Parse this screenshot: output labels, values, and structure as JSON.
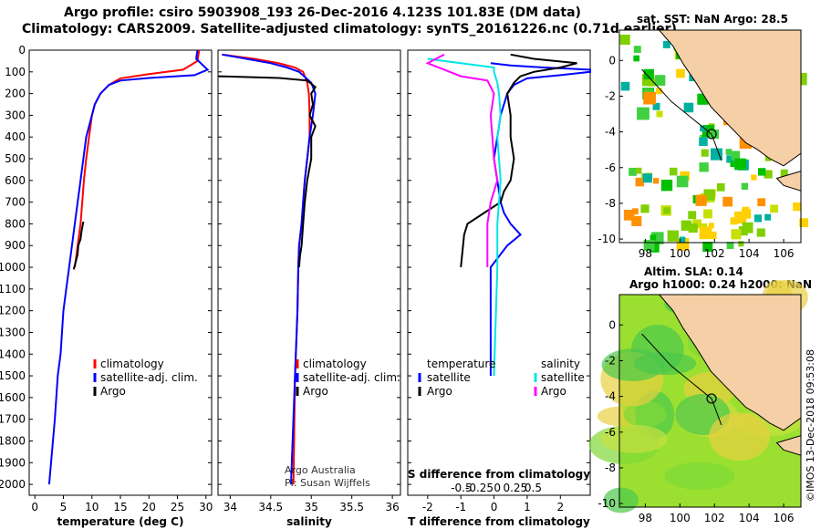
{
  "titles": {
    "line1": "Argo profile: csiro 5903908_193 26-Dec-2016 4.123S 101.83E (DM data)",
    "line2": "Climatology: CARS2009. Satellite-adjusted climatology: synTS_20161226.nc (0.71d earlier)"
  },
  "colors": {
    "climatology": "#ff0000",
    "satellite": "#0000ff",
    "argo": "#000000",
    "sat_sal": "#00e5e5",
    "argo_sal": "#ff00ff"
  },
  "chart_data": [
    {
      "type": "line",
      "id": "temperature",
      "xlabel": "temperature (deg C)",
      "ylabel": "",
      "xlim": [
        -1,
        31
      ],
      "ylim": [
        2050,
        0
      ],
      "xticks": [
        0,
        5,
        10,
        15,
        20,
        25,
        30
      ],
      "yticks": [
        0,
        100,
        200,
        300,
        400,
        500,
        600,
        700,
        800,
        900,
        1000,
        1100,
        1200,
        1300,
        1400,
        1500,
        1600,
        1700,
        1800,
        1900,
        2000
      ],
      "legend": [
        "climatology",
        "satellite-adj. clim.",
        "Argo"
      ],
      "series": [
        {
          "name": "climatology",
          "color": "#ff0000",
          "x": [
            28.8,
            28.7,
            28.5,
            26,
            20,
            15,
            13,
            11.5,
            10.5,
            10,
            9.5,
            9,
            8.6,
            8,
            7
          ],
          "y": [
            0,
            20,
            50,
            90,
            110,
            130,
            160,
            200,
            250,
            300,
            400,
            500,
            600,
            800,
            1000
          ]
        },
        {
          "name": "satellite-adj. clim.",
          "color": "#0000ff",
          "x": [
            28.5,
            28.3,
            29.5,
            30.3,
            28,
            20,
            15,
            13,
            11.5,
            10.5,
            10,
            9,
            8,
            7,
            6,
            5.5,
            5,
            4.5,
            4,
            3.5,
            3,
            2.5
          ],
          "y": [
            0,
            40,
            70,
            90,
            115,
            128,
            140,
            160,
            200,
            250,
            300,
            400,
            600,
            800,
            1000,
            1100,
            1200,
            1400,
            1500,
            1700,
            1850,
            2000
          ]
        },
        {
          "name": "Argo",
          "color": "#000000",
          "x": [
            8.5,
            8.2,
            8,
            7.6,
            7.5,
            7.2,
            7,
            6.8
          ],
          "y": [
            790,
            830,
            870,
            900,
            940,
            970,
            990,
            1010
          ]
        }
      ]
    },
    {
      "type": "line",
      "id": "salinity",
      "xlabel": "salinity",
      "ylabel": "",
      "xlim": [
        33.85,
        36.1
      ],
      "ylim": [
        2050,
        0
      ],
      "xticks": [
        34,
        34.5,
        35,
        35.5,
        36
      ],
      "legend": [
        "climatology",
        "satellite-adj. clim.",
        "Argo"
      ],
      "annotations": [
        "Argo Australia",
        "PI: Susan Wijffels"
      ],
      "series": [
        {
          "name": "climatology",
          "color": "#ff0000",
          "x": [
            33.9,
            34.3,
            34.6,
            34.8,
            34.9,
            34.95,
            34.97,
            34.98,
            34.98,
            34.95,
            34.92,
            34.9,
            34.88,
            34.85,
            34.84,
            34.83,
            34.8,
            34.78
          ],
          "y": [
            20,
            40,
            60,
            80,
            100,
            150,
            200,
            300,
            400,
            500,
            600,
            700,
            800,
            900,
            1000,
            1200,
            1500,
            2000
          ]
        },
        {
          "name": "satellite-adj. clim.",
          "color": "#0000ff",
          "x": [
            33.9,
            34.2,
            34.5,
            34.7,
            34.85,
            35.0,
            35.05,
            35.02,
            34.98,
            34.95,
            34.92,
            34.9,
            34.88,
            34.85,
            34.84,
            34.83,
            34.8,
            34.75
          ],
          "y": [
            20,
            40,
            60,
            80,
            100,
            150,
            200,
            300,
            400,
            500,
            600,
            700,
            800,
            900,
            1000,
            1200,
            1500,
            2000
          ]
        },
        {
          "name": "Argo",
          "color": "#000000",
          "x": [
            33.85,
            34.6,
            34.95,
            35.05,
            35.0,
            35.02,
            34.98,
            35.05,
            35.0,
            35.0,
            34.95,
            34.92,
            34.9,
            34.88,
            34.86,
            34.85
          ],
          "y": [
            120,
            128,
            140,
            170,
            200,
            250,
            300,
            350,
            400,
            500,
            600,
            700,
            800,
            900,
            950,
            1000
          ]
        }
      ]
    },
    {
      "type": "line",
      "id": "difference",
      "xlabel": "T difference from climatology",
      "top_label": "S difference from climatology",
      "xlim": [
        -2.6,
        2.9
      ],
      "ylim": [
        2050,
        0
      ],
      "xticks": [
        -2,
        -1,
        0,
        1,
        2
      ],
      "top_ticks": [
        "-0.5",
        "-0.25",
        "0",
        "0.25",
        "0.5"
      ],
      "legend_left": [
        "temperature",
        "satellite",
        "Argo"
      ],
      "legend_right": [
        "salinity",
        "satellite",
        "Argo"
      ],
      "series": [
        {
          "name": "temperature satellite",
          "color": "#0000ff",
          "x": [
            -0.1,
            0.5,
            1.5,
            2.9,
            3.0,
            2.0,
            1.0,
            0.8,
            0.6,
            0.5,
            0.4,
            0.2,
            0.1,
            0.0,
            0.1,
            0.2,
            0.3,
            0.5,
            0.8,
            0.4,
            -0.1,
            -0.1
          ],
          "y": [
            60,
            70,
            80,
            90,
            100,
            115,
            130,
            145,
            160,
            180,
            200,
            300,
            400,
            500,
            600,
            700,
            750,
            800,
            850,
            900,
            1000,
            1500
          ]
        },
        {
          "name": "temperature Argo",
          "color": "#000000",
          "x": [
            0.5,
            1.2,
            2.5,
            2.0,
            1.2,
            0.8,
            0.6,
            0.4,
            0.5,
            0.5,
            0.6,
            0.5,
            0.3,
            0.2,
            -0.3,
            -0.8,
            -0.9,
            -1.0
          ],
          "y": [
            20,
            40,
            60,
            80,
            100,
            120,
            150,
            200,
            300,
            400,
            500,
            600,
            650,
            700,
            750,
            800,
            850,
            1000
          ]
        },
        {
          "name": "salinity satellite",
          "color": "#00e5e5",
          "x": [
            -2.0,
            -1.0,
            0.0,
            0.0,
            0.1,
            0.15,
            0.2,
            0.1,
            0.2,
            0.1,
            0.1,
            0.0
          ],
          "y": [
            40,
            60,
            80,
            100,
            150,
            200,
            300,
            400,
            600,
            800,
            1000,
            1500
          ]
        },
        {
          "name": "salinity Argo",
          "color": "#ff00ff",
          "x": [
            -1.5,
            -2.0,
            -1.0,
            -0.2,
            0.0,
            -0.1,
            0.0,
            0.1,
            -0.1,
            -0.2,
            -0.2
          ],
          "y": [
            20,
            60,
            120,
            140,
            200,
            300,
            500,
            600,
            700,
            800,
            1000
          ]
        }
      ]
    },
    {
      "type": "heatmap",
      "id": "sst_map",
      "title": "sat. SST: NaN Argo: 28.5",
      "xticks": [
        98,
        100,
        102,
        104,
        106
      ],
      "yticks": [
        0,
        -2,
        -4,
        -6,
        -8,
        -10
      ],
      "xlim": [
        96.5,
        107
      ],
      "ylim": [
        -10.2,
        1.7
      ],
      "argo_position": [
        101.83,
        -4.12
      ]
    },
    {
      "type": "heatmap",
      "id": "sla_map",
      "title_line1": "Altim. SLA: 0.14",
      "title_line2": "Argo h1000: 0.24 h2000: NaN",
      "xticks": [
        98,
        100,
        102,
        104,
        106
      ],
      "yticks": [
        0,
        -2,
        -4,
        -6,
        -8,
        -10
      ],
      "xlim": [
        96.5,
        107
      ],
      "ylim": [
        -10.2,
        1.7
      ],
      "argo_position": [
        101.83,
        -4.12
      ]
    }
  ],
  "side_text": "©IMOS 13-Dec-2018 09:53:08"
}
